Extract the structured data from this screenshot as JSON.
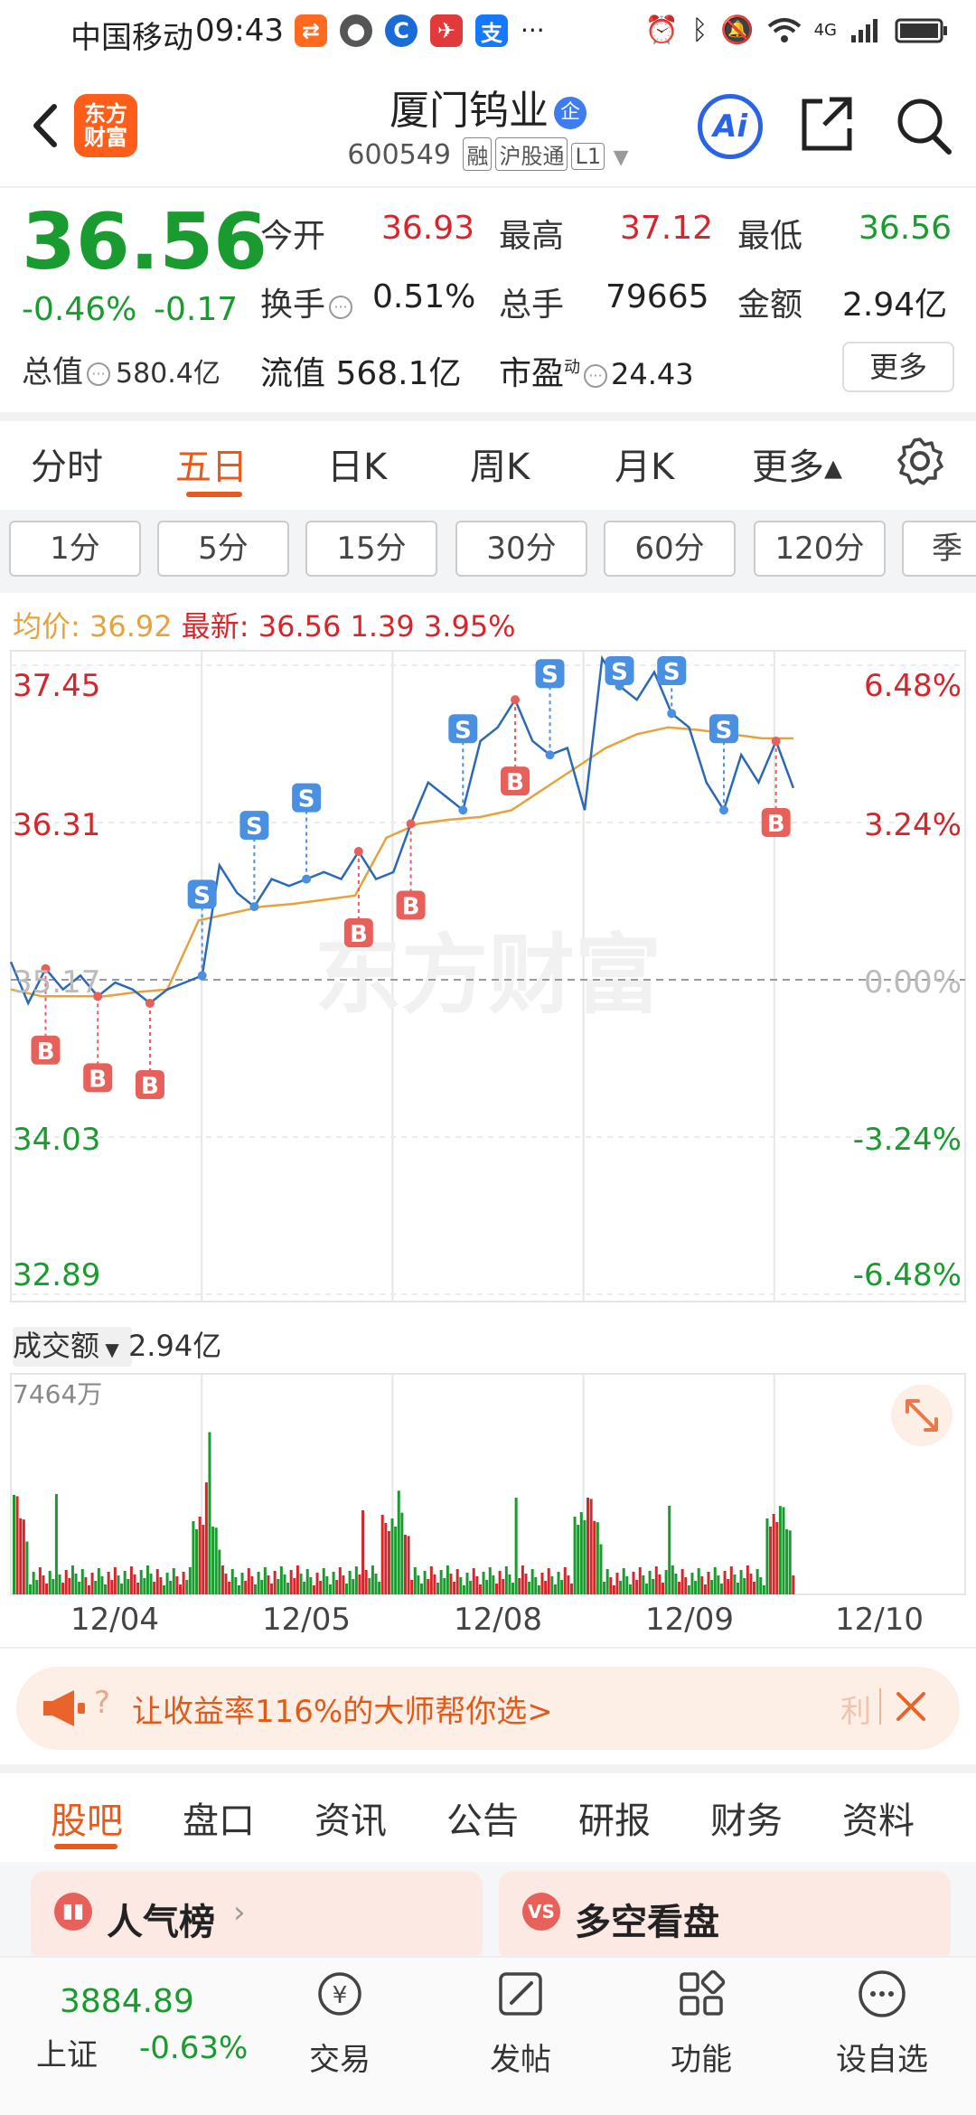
{
  "status_bar": {
    "carrier": "中国移动",
    "time": "09:43",
    "network": "4G"
  },
  "header": {
    "logo_line1": "东方",
    "logo_line2": "财富",
    "stock_name": "厦门钨业",
    "stock_badge": "企",
    "code": "600549",
    "tags": [
      "融",
      "沪股通",
      "L1"
    ],
    "ai_label": "Ai"
  },
  "quote": {
    "price": "36.56",
    "change_pct": "-0.46%",
    "change": "-0.17",
    "rows": [
      [
        {
          "label": "今开",
          "value": "36.93",
          "color": "red"
        },
        {
          "label": "最高",
          "value": "37.12",
          "color": "red"
        },
        {
          "label": "最低",
          "value": "36.56",
          "color": "green"
        }
      ],
      [
        {
          "label": "换手",
          "value": "0.51%",
          "color": "black"
        },
        {
          "label": "总手",
          "value": "79665",
          "color": "black"
        },
        {
          "label": "金额",
          "value": "2.94亿",
          "color": "black"
        }
      ]
    ],
    "market_cap_label": "总值",
    "market_cap": "580.4亿",
    "float_cap_label": "流值",
    "float_cap": "568.1亿",
    "pe_label": "市盈",
    "pe_sup": "动",
    "pe": "24.43",
    "more_label": "更多"
  },
  "period_tabs": [
    "分时",
    "五日",
    "日K",
    "周K",
    "月K",
    "更多▴"
  ],
  "active_period": "五日",
  "intervals": [
    "1分",
    "5分",
    "15分",
    "30分",
    "60分",
    "120分",
    "季"
  ],
  "avg_line": {
    "avg_label": "均价:",
    "avg_value": "36.92",
    "latest_label": "最新:",
    "latest_value": "36.56",
    "diff": "1.39",
    "diff_pct": "3.95%"
  },
  "chart_data": {
    "type": "line",
    "title": "",
    "y_left_ticks": [
      "37.45",
      "36.31",
      "35.17",
      "34.03",
      "32.89"
    ],
    "y_right_ticks": [
      "6.48%",
      "3.24%",
      "0.00%",
      "-3.24%",
      "-6.48%"
    ],
    "ylim": [
      32.89,
      37.45
    ],
    "days": [
      "12/04",
      "12/05",
      "12/08",
      "12/09",
      "12/10"
    ],
    "series": [
      {
        "name": "",
        "values": [
          35.3,
          35.0,
          35.25,
          35.1,
          35.2,
          35.05,
          35.15,
          35.1,
          35.0,
          35.1,
          35.15,
          35.2,
          36.0,
          35.8,
          35.7,
          35.9,
          35.85,
          35.9,
          35.95,
          35.9,
          36.1,
          35.9,
          35.95,
          36.3,
          36.6,
          36.5,
          36.4,
          36.9,
          37.0,
          37.2,
          36.9,
          36.8,
          36.85,
          36.4,
          37.5,
          37.3,
          37.2,
          37.4,
          37.1,
          37.0,
          36.6,
          36.4,
          36.8,
          36.6,
          36.9,
          36.56
        ]
      },
      {
        "name": "",
        "values": [
          35.1,
          35.05,
          35.05,
          35.05,
          35.08,
          35.1,
          35.6,
          35.65,
          35.7,
          35.72,
          35.75,
          35.78,
          36.2,
          36.3,
          36.33,
          36.35,
          36.4,
          36.55,
          36.7,
          36.85,
          36.95,
          37.0,
          36.98,
          36.95,
          36.92,
          36.92
        ]
      }
    ],
    "markers": [
      "B",
      "B",
      "B",
      "S",
      "S",
      "S",
      "B",
      "B",
      "S",
      "B",
      "S",
      "S",
      "S",
      "S",
      "B"
    ],
    "colors": {
      "price_line": "#2c69b5",
      "avg_line": "#e6a23c",
      "buy": "#e8605a",
      "sell": "#4a90e2"
    }
  },
  "volume": {
    "label": "成交额",
    "total": "2.94亿",
    "max_label": "7464万"
  },
  "banner": {
    "text": "让收益率116%的大师帮你选>",
    "side": "利"
  },
  "bottom_tabs": [
    "股吧",
    "盘口",
    "资讯",
    "公告",
    "研报",
    "财务",
    "资料"
  ],
  "active_bottom_tab": "股吧",
  "cards": [
    "人气榜",
    "多空看盘"
  ],
  "bottom_nav": {
    "index_value": "3884.89",
    "index_name": "上证",
    "index_change": "-0.63%",
    "items": [
      "交易",
      "发帖",
      "功能",
      "设自选"
    ]
  },
  "watermark": "东方财富"
}
